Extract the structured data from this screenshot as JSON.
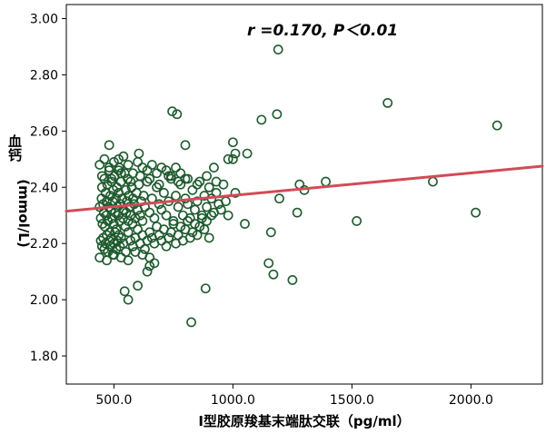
{
  "chart_data": {
    "type": "scatter",
    "title": "",
    "annotation": "r =0.170, P＜0.01",
    "xlabel": "I型胶原羧基末端肽交联（pg/ml）",
    "ylabel_chars": "血钙",
    "ylabel_unit": "(mmol/L)",
    "xlim": [
      300,
      2300
    ],
    "ylim": [
      1.7,
      3.05
    ],
    "xticks": [
      500,
      1000,
      1500,
      2000
    ],
    "xtick_labels": [
      "500.0",
      "1000.0",
      "1500.0",
      "2000.0"
    ],
    "yticks": [
      1.8,
      2.0,
      2.2,
      2.4,
      2.6,
      2.8,
      3.0
    ],
    "ytick_labels": [
      "1.80",
      "2.00",
      "2.20",
      "2.40",
      "2.60",
      "2.80",
      "3.00"
    ],
    "grid": false,
    "legend": "none",
    "colors": {
      "marker": "#1e5a2e",
      "fit_line": "#d24b57",
      "axis": "#000000",
      "background": "#ffffff"
    },
    "fit_line": {
      "x": [
        300,
        2300
      ],
      "y": [
        2.315,
        2.475
      ]
    },
    "points": {
      "x": [
        440,
        445,
        448,
        450,
        452,
        455,
        458,
        460,
        462,
        465,
        468,
        470,
        472,
        475,
        478,
        480,
        482,
        485,
        488,
        490,
        492,
        495,
        498,
        500,
        502,
        505,
        508,
        510,
        512,
        515,
        518,
        520,
        522,
        525,
        528,
        530,
        535,
        538,
        540,
        545,
        548,
        550,
        552,
        555,
        558,
        560,
        562,
        565,
        570,
        575,
        578,
        580,
        585,
        590,
        595,
        600,
        605,
        610,
        615,
        620,
        625,
        630,
        640,
        650,
        660,
        670,
        680,
        690,
        700,
        710,
        720,
        730,
        740,
        750,
        760,
        770,
        780,
        790,
        800,
        810,
        820,
        830,
        840,
        850,
        860,
        870,
        880,
        890,
        900,
        910,
        920,
        930,
        940,
        950,
        960,
        970,
        980,
        1000,
        1010,
        445,
        450,
        455,
        460,
        465,
        470,
        475,
        480,
        485,
        490,
        495,
        500,
        505,
        510,
        515,
        520,
        525,
        530,
        540,
        550,
        560,
        570,
        580,
        590,
        600,
        610,
        620,
        630,
        640,
        650,
        660,
        670,
        680,
        690,
        700,
        710,
        720,
        730,
        740,
        750,
        760,
        770,
        780,
        790,
        800,
        810,
        820,
        830,
        840,
        850,
        860,
        870,
        880,
        890,
        900,
        910,
        440,
        460,
        480,
        500,
        520,
        540,
        560,
        580,
        600,
        620,
        640,
        660,
        680,
        700,
        720,
        740,
        760,
        780,
        800,
        440,
        470,
        500,
        530,
        560,
        590,
        620,
        650,
        450,
        490,
        530,
        570,
        610,
        650,
        690,
        730,
        770,
        810,
        850,
        890,
        930,
        600,
        480,
        520,
        545,
        560,
        605,
        640,
        650,
        670,
        745,
        765,
        800,
        825,
        885,
        920,
        980,
        1000,
        1010,
        1050,
        1060,
        1120,
        1150,
        1160,
        1170,
        1185,
        1190,
        1195,
        1250,
        1270,
        1280,
        1300,
        1390,
        1520,
        1650,
        1840,
        2020,
        2110
      ],
      "y": [
        2.33,
        2.29,
        2.36,
        2.4,
        2.27,
        2.34,
        2.31,
        2.43,
        2.26,
        2.38,
        2.3,
        2.35,
        2.41,
        2.28,
        2.33,
        2.46,
        2.24,
        2.37,
        2.32,
        2.42,
        2.29,
        2.35,
        2.39,
        2.27,
        2.44,
        2.31,
        2.36,
        2.25,
        2.4,
        2.33,
        2.3,
        2.38,
        2.47,
        2.28,
        2.34,
        2.42,
        2.36,
        2.29,
        2.32,
        2.45,
        2.26,
        2.39,
        2.31,
        2.35,
        2.43,
        2.28,
        2.37,
        2.33,
        2.3,
        2.4,
        2.27,
        2.36,
        2.34,
        2.29,
        2.38,
        2.32,
        2.41,
        2.3,
        2.35,
        2.28,
        2.37,
        2.33,
        2.42,
        2.31,
        2.36,
        2.29,
        2.4,
        2.34,
        2.32,
        2.38,
        2.3,
        2.35,
        2.43,
        2.28,
        2.37,
        2.33,
        2.41,
        2.3,
        2.36,
        2.34,
        2.29,
        2.39,
        2.32,
        2.35,
        2.42,
        2.3,
        2.37,
        2.33,
        2.4,
        2.36,
        2.31,
        2.38,
        2.34,
        2.32,
        2.41,
        2.35,
        2.3,
        2.5,
        2.38,
        2.21,
        2.19,
        2.22,
        2.18,
        2.2,
        2.23,
        2.17,
        2.21,
        2.19,
        2.22,
        2.16,
        2.2,
        2.24,
        2.18,
        2.21,
        2.23,
        2.19,
        2.22,
        2.2,
        2.17,
        2.24,
        2.21,
        2.19,
        2.22,
        2.25,
        2.2,
        2.23,
        2.18,
        2.21,
        2.24,
        2.22,
        2.2,
        2.26,
        2.23,
        2.21,
        2.25,
        2.19,
        2.22,
        2.24,
        2.27,
        2.2,
        2.23,
        2.26,
        2.21,
        2.25,
        2.28,
        2.22,
        2.24,
        2.27,
        2.23,
        2.26,
        2.29,
        2.25,
        2.28,
        2.22,
        2.3,
        2.48,
        2.5,
        2.47,
        2.49,
        2.46,
        2.51,
        2.48,
        2.45,
        2.49,
        2.47,
        2.46,
        2.48,
        2.45,
        2.47,
        2.46,
        2.44,
        2.47,
        2.45,
        2.43,
        2.15,
        2.14,
        2.16,
        2.15,
        2.14,
        2.17,
        2.16,
        2.15,
        2.44,
        2.43,
        2.45,
        2.42,
        2.44,
        2.43,
        2.41,
        2.44,
        2.42,
        2.43,
        2.41,
        2.44,
        2.42,
        2.05,
        2.55,
        2.5,
        2.03,
        2.0,
        2.52,
        2.1,
        2.12,
        2.13,
        2.67,
        2.66,
        2.55,
        1.92,
        2.04,
        2.47,
        2.5,
        2.56,
        2.52,
        2.27,
        2.52,
        2.64,
        2.13,
        2.24,
        2.09,
        2.66,
        2.89,
        2.36,
        2.07,
        2.31,
        2.41,
        2.39,
        2.42,
        2.28,
        2.7,
        2.42,
        2.31,
        2.62
      ]
    }
  }
}
